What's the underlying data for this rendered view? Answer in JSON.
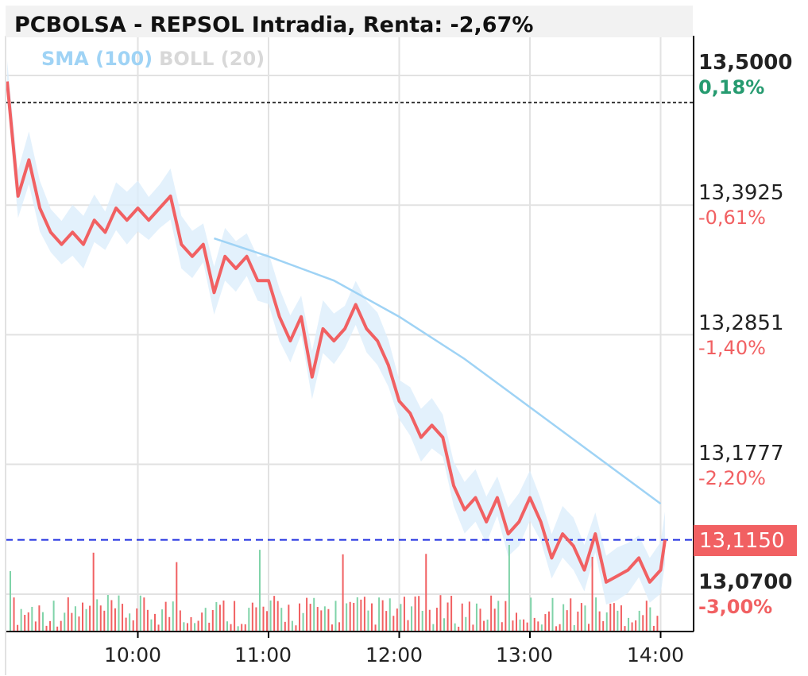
{
  "header": {
    "title": "PCBOLSA - REPSOL Intradia, Renta: -2,67%"
  },
  "legend": {
    "sma": "SMA (100)",
    "boll": "BOLL (20)"
  },
  "y_axis": [
    {
      "price": "13,5000",
      "pct": "0,18%",
      "pct_color": "#269b70",
      "bold": true
    },
    {
      "price": "13,3925",
      "pct": "-0,61%",
      "pct_color": "#f16062",
      "bold": false
    },
    {
      "price": "13,2851",
      "pct": "-1,40%",
      "pct_color": "#f16062",
      "bold": false
    },
    {
      "price": "13,1777",
      "pct": "-2,20%",
      "pct_color": "#f16062",
      "bold": false
    },
    {
      "price": "13,0700",
      "pct": "-3,00%",
      "pct_color": "#f16062",
      "bold": true
    }
  ],
  "current_price": "13,1150",
  "x_axis": [
    "10:00",
    "11:00",
    "12:00",
    "13:00",
    "14:00"
  ],
  "colors": {
    "price_line": "#f16062",
    "sma": "#9fd3f5",
    "boll_band": "#dcedfb",
    "up_volume": "#7fd3a8",
    "down_volume": "#f16062",
    "current_line": "#1f2ee0",
    "reference_line": "#333333",
    "grid": "#e2e2e2"
  },
  "chart_data": {
    "type": "line",
    "title": "PCBOLSA - REPSOL Intradia, Renta: -2,67%",
    "ylim": [
      13.06,
      13.53
    ],
    "reference_price": 13.4775,
    "current_price": 13.115,
    "x_ticks": [
      "10:00",
      "11:00",
      "12:00",
      "13:00",
      "14:00"
    ],
    "series": [
      {
        "name": "REPSOL",
        "x": [
          "09:00",
          "09:05",
          "09:10",
          "09:15",
          "09:20",
          "09:25",
          "09:30",
          "09:35",
          "09:40",
          "09:45",
          "09:50",
          "09:55",
          "10:00",
          "10:05",
          "10:10",
          "10:15",
          "10:20",
          "10:25",
          "10:30",
          "10:35",
          "10:40",
          "10:45",
          "10:50",
          "10:55",
          "11:00",
          "11:05",
          "11:10",
          "11:15",
          "11:20",
          "11:25",
          "11:30",
          "11:35",
          "11:40",
          "11:45",
          "11:50",
          "11:55",
          "12:00",
          "12:05",
          "12:10",
          "12:15",
          "12:20",
          "12:25",
          "12:30",
          "12:35",
          "12:40",
          "12:45",
          "12:50",
          "12:55",
          "13:00",
          "13:05",
          "13:10",
          "13:15",
          "13:20",
          "13:25",
          "13:30",
          "13:35",
          "13:40",
          "13:45",
          "13:50",
          "13:55",
          "14:00",
          "14:02"
        ],
        "values": [
          13.495,
          13.4,
          13.43,
          13.39,
          13.37,
          13.36,
          13.37,
          13.36,
          13.38,
          13.37,
          13.39,
          13.38,
          13.39,
          13.38,
          13.39,
          13.4,
          13.36,
          13.35,
          13.36,
          13.32,
          13.35,
          13.34,
          13.35,
          13.33,
          13.33,
          13.3,
          13.28,
          13.3,
          13.25,
          13.29,
          13.28,
          13.29,
          13.31,
          13.29,
          13.28,
          13.26,
          13.23,
          13.22,
          13.2,
          13.21,
          13.2,
          13.16,
          13.14,
          13.15,
          13.13,
          13.15,
          13.12,
          13.13,
          13.15,
          13.13,
          13.1,
          13.12,
          13.11,
          13.09,
          13.12,
          13.08,
          13.085,
          13.09,
          13.1,
          13.08,
          13.09,
          13.115
        ]
      },
      {
        "name": "SMA (100)",
        "x": [
          "10:35",
          "11:00",
          "11:30",
          "12:00",
          "12:30",
          "13:00",
          "13:30",
          "14:00"
        ],
        "values": [
          13.365,
          13.35,
          13.33,
          13.3,
          13.265,
          13.225,
          13.185,
          13.145
        ]
      }
    ]
  }
}
